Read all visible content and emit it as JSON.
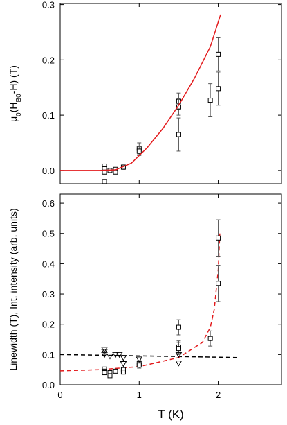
{
  "chart_data": [
    {
      "type": "scatter",
      "ylabel": [
        {
          "text": "μ"
        },
        {
          "text": "0",
          "sub": true
        },
        {
          "text": "(H"
        },
        {
          "text": "B0",
          "sub": true
        },
        {
          "text": "-H) (T)"
        }
      ],
      "xlim": [
        0,
        2.8
      ],
      "ylim": [
        -0.024,
        0.302
      ],
      "xticks": [
        0,
        1,
        2
      ],
      "xtick_labels": false,
      "yticks": [
        {
          "value": 0,
          "label": "0.0"
        },
        {
          "value": 0.1,
          "label": "0.1"
        },
        {
          "value": 0.2,
          "label": "0.2"
        },
        {
          "value": 0.3,
          "label": "0.3"
        }
      ],
      "series": [
        {
          "marker": "square",
          "color": "#000000",
          "x": [
            0.56,
            0.56,
            0.56,
            0.56,
            0.63,
            0.7,
            0.7,
            0.8,
            1.0,
            1.0,
            1.5,
            1.5,
            1.5,
            1.9,
            2.0,
            2.0
          ],
          "values": [
            0.008,
            0.003,
            -0.003,
            -0.02,
            0.0,
            0.002,
            -0.003,
            0.006,
            0.04,
            0.035,
            0.125,
            0.115,
            0.065,
            0.127,
            0.21,
            0.148
          ],
          "errors": [
            null,
            null,
            null,
            null,
            null,
            null,
            null,
            0.004,
            0.01,
            0.008,
            0.015,
            0.015,
            0.03,
            0.03,
            0.03,
            0.03
          ]
        },
        {
          "line": "solid",
          "color": "#e31a1c",
          "x": [
            0,
            0.5,
            0.7,
            0.9,
            1.1,
            1.3,
            1.5,
            1.7,
            1.9,
            2.03
          ],
          "values": [
            0,
            0,
            0.001,
            0.013,
            0.041,
            0.076,
            0.118,
            0.167,
            0.224,
            0.282
          ]
        }
      ]
    },
    {
      "type": "scatter",
      "ylabel": [
        {
          "text": "Linewidth (T), Int. intensity (arb. units)"
        }
      ],
      "xlabel": "T (K)",
      "xlim": [
        0,
        2.8
      ],
      "ylim": [
        0,
        0.63
      ],
      "xticks": [
        0,
        1,
        2
      ],
      "xtick_labels": true,
      "yticks": [
        {
          "value": 0,
          "label": "0.0"
        },
        {
          "value": 0.1,
          "label": "0.1"
        },
        {
          "value": 0.2,
          "label": "0.2"
        },
        {
          "value": 0.3,
          "label": "0.3"
        },
        {
          "value": 0.4,
          "label": "0.4"
        },
        {
          "value": 0.5,
          "label": "0.5"
        },
        {
          "value": 0.6,
          "label": "0.6"
        }
      ],
      "series": [
        {
          "line": "dashed",
          "color": "#000000",
          "x": [
            0,
            2.25
          ],
          "values": [
            0.1,
            0.09
          ]
        },
        {
          "line": "dashed",
          "color": "#e31a1c",
          "x": [
            0,
            0.5,
            1.0,
            1.5,
            1.8,
            1.9,
            1.95,
            2.0,
            2.02
          ],
          "values": [
            0.046,
            0.05,
            0.06,
            0.09,
            0.14,
            0.19,
            0.25,
            0.38,
            0.5
          ]
        },
        {
          "marker": "square",
          "color": "#000000",
          "x": [
            0.56,
            0.56,
            0.56,
            0.63,
            0.63,
            0.7,
            0.8,
            0.8,
            1.0,
            1.0,
            1.5,
            1.5,
            1.5,
            1.9,
            2.0,
            2.0
          ],
          "values": [
            0.052,
            0.045,
            0.04,
            0.04,
            0.03,
            0.045,
            0.05,
            0.042,
            0.07,
            0.065,
            0.19,
            0.125,
            0.12,
            0.153,
            0.485,
            0.335
          ],
          "errors": [
            0.006,
            0.006,
            0.005,
            0.006,
            0.005,
            0.006,
            0.008,
            0.006,
            0.01,
            0.01,
            0.025,
            0.02,
            0.02,
            0.025,
            0.06,
            0.06
          ]
        },
        {
          "marker": "triangle-down",
          "color": "#000000",
          "x": [
            0.56,
            0.56,
            0.56,
            0.63,
            0.7,
            0.75,
            0.8,
            0.8,
            1.0,
            1.5,
            1.5
          ],
          "values": [
            0.117,
            0.11,
            0.1,
            0.095,
            0.1,
            0.1,
            0.09,
            0.07,
            0.085,
            0.1,
            0.072
          ]
        }
      ]
    }
  ]
}
